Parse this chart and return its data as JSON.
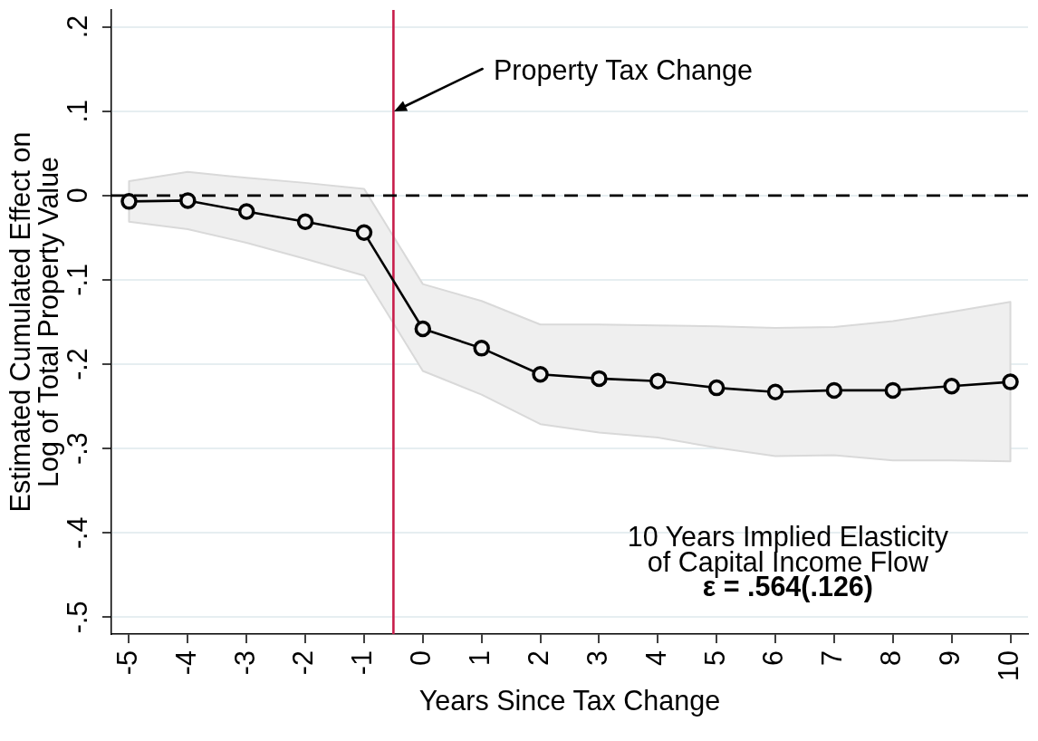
{
  "chart_data": {
    "type": "line",
    "xlabel": "Years Since Tax Change",
    "ylabel": "Estimated Cumulated Effect on\nLog of Total Property Value",
    "x": [
      -5,
      -4,
      -3,
      -2,
      -1,
      0,
      1,
      2,
      3,
      4,
      5,
      6,
      7,
      8,
      9,
      10
    ],
    "series": [
      {
        "color": "#000000",
        "values": [
          -0.007,
          -0.006,
          -0.019,
          -0.031,
          -0.044,
          -0.158,
          -0.181,
          -0.212,
          -0.217,
          -0.22,
          -0.228,
          -0.233,
          -0.231,
          -0.231,
          -0.226,
          -0.221
        ],
        "lower": [
          -0.031,
          -0.04,
          -0.056,
          -0.075,
          -0.095,
          -0.208,
          -0.236,
          -0.271,
          -0.281,
          -0.287,
          -0.299,
          -0.309,
          -0.308,
          -0.314,
          -0.314,
          -0.315
        ],
        "upper": [
          0.017,
          0.028,
          0.021,
          0.015,
          0.008,
          -0.105,
          -0.125,
          -0.153,
          -0.153,
          -0.154,
          -0.155,
          -0.157,
          -0.156,
          -0.149,
          -0.138,
          -0.126
        ]
      }
    ],
    "xlim": [
      -5.3,
      10.3
    ],
    "xticks": [
      -5,
      -4,
      -3,
      -2,
      -1,
      0,
      1,
      2,
      3,
      4,
      5,
      6,
      7,
      8,
      9,
      10
    ],
    "ylim": [
      -0.52,
      0.22
    ],
    "yticks": [
      {
        "value": 0.2,
        "label": ".2"
      },
      {
        "value": 0.1,
        "label": ".1"
      },
      0,
      {
        "value": -0.1,
        "label": "-.1"
      },
      {
        "value": -0.2,
        "label": "-.2"
      },
      {
        "value": -0.3,
        "label": "-.3"
      },
      {
        "value": -0.4,
        "label": "-.4"
      },
      {
        "value": -0.5,
        "label": "-.5"
      }
    ],
    "grid": "y",
    "marker": "circle",
    "line_style": "solid",
    "ref_lines": [
      {
        "axis": "x",
        "value": -0.5,
        "color": "#c81e4b"
      },
      {
        "axis": "y",
        "value": 0,
        "color": "#000000",
        "line_style": "dashed"
      }
    ],
    "annotations": [
      "Property Tax Change",
      "10 Years Implied Elasticity",
      "of Capital Income Flow",
      "ε = .564(.126)"
    ]
  }
}
